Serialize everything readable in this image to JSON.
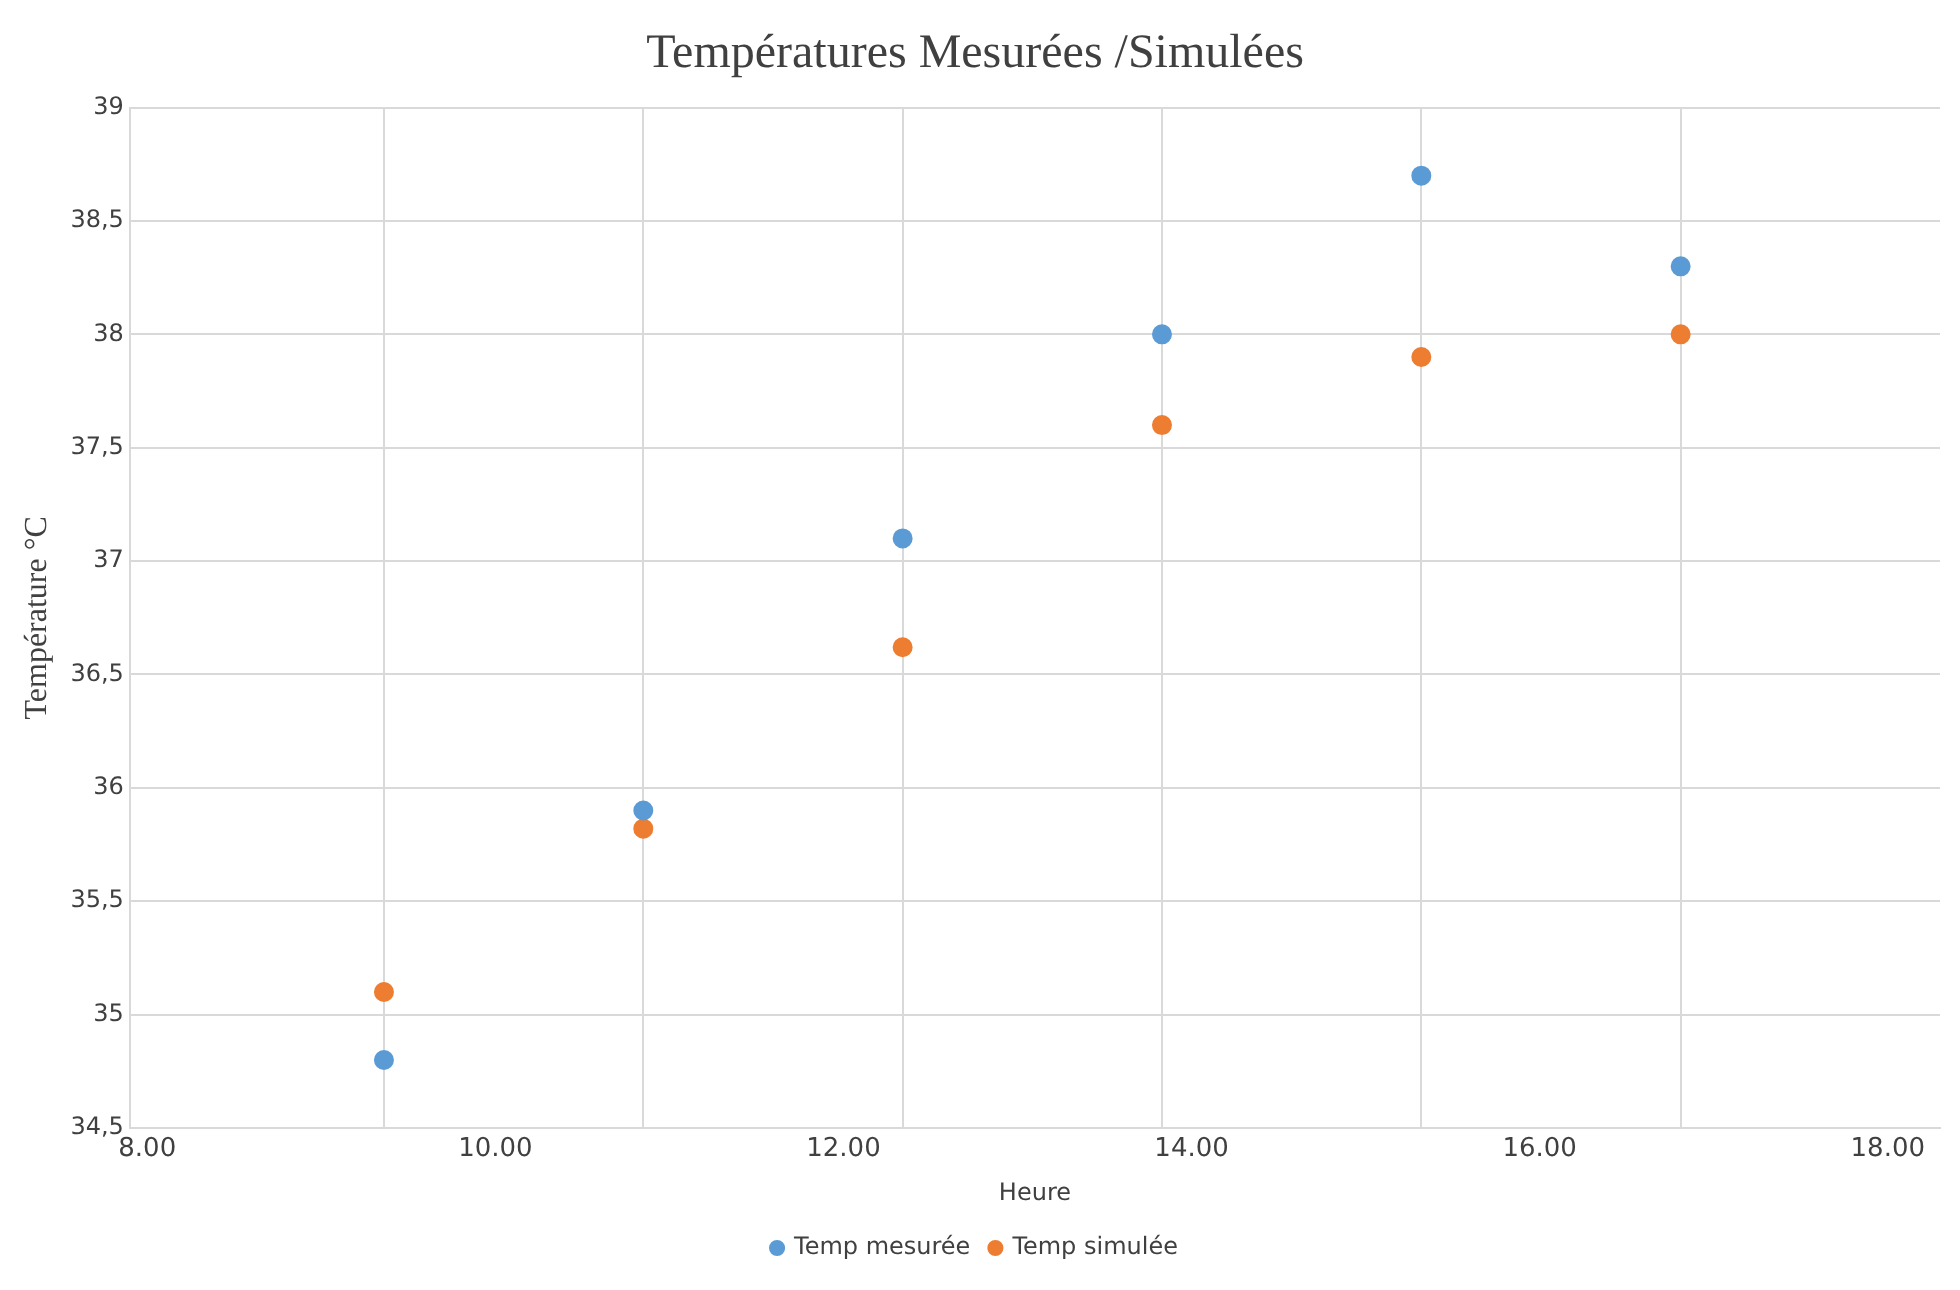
{
  "chart_data": {
    "type": "scatter",
    "title": "Températures Mesurées /Simulées",
    "xlabel": "Heure",
    "ylabel": "Température °C",
    "xlim": [
      7.9,
      18.3
    ],
    "xticks": [
      {
        "value": 8,
        "label": "8.00"
      },
      {
        "value": 9.36,
        "label": null
      },
      {
        "value": 10,
        "label": "10.00"
      },
      {
        "value": 10.85,
        "label": null
      },
      {
        "value": 12,
        "label": "12.00"
      },
      {
        "value": 12.34,
        "label": null
      },
      {
        "value": 13.83,
        "label": null
      },
      {
        "value": 14,
        "label": "14.00"
      },
      {
        "value": 15.32,
        "label": null
      },
      {
        "value": 16,
        "label": "16.00"
      },
      {
        "value": 16.81,
        "label": null
      },
      {
        "value": 18,
        "label": "18.00"
      }
    ],
    "ylim": [
      34.5,
      39
    ],
    "yticks": [
      {
        "value": 34.5,
        "label": "34,5"
      },
      {
        "value": 35,
        "label": "35"
      },
      {
        "value": 35.5,
        "label": "35,5"
      },
      {
        "value": 36,
        "label": "36"
      },
      {
        "value": 36.5,
        "label": "36,5"
      },
      {
        "value": 37,
        "label": "37"
      },
      {
        "value": 37.5,
        "label": "37,5"
      },
      {
        "value": 38,
        "label": "38"
      },
      {
        "value": 38.5,
        "label": "38,5"
      },
      {
        "value": 39,
        "label": "39"
      }
    ],
    "x": [
      9.36,
      10.85,
      12.34,
      13.83,
      15.32,
      16.81
    ],
    "series": [
      {
        "name": "Temp mesurée",
        "color": "#5b9bd5",
        "values": [
          34.8,
          35.9,
          37.1,
          38.0,
          38.7,
          38.3
        ]
      },
      {
        "name": "Temp simulée",
        "color": "#ed7d31",
        "values": [
          35.1,
          35.82,
          36.62,
          37.6,
          37.9,
          38.0
        ]
      }
    ],
    "grid": true,
    "legend": "bottom",
    "marker": "circle"
  }
}
